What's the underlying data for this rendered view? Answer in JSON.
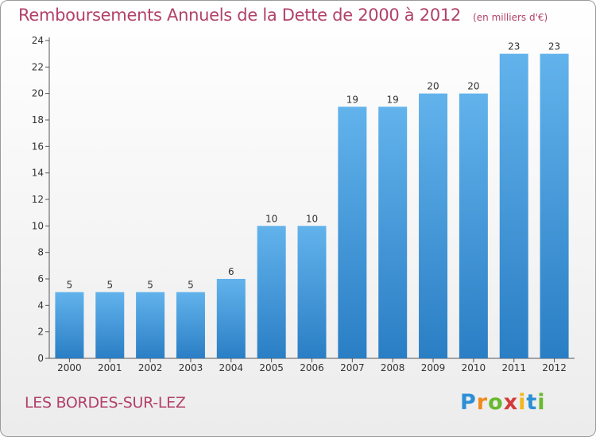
{
  "title": "Remboursements Annuels de la Dette de 2000 à 2012",
  "subtitle": "(en milliers d'€)",
  "commune": "LES BORDES-SUR-LEZ",
  "logo": {
    "letters": [
      "P",
      "r",
      "o",
      "x",
      "i",
      "t",
      "i"
    ],
    "colors": [
      "#2b8fd6",
      "#f08a1c",
      "#69b82e",
      "#d43a3a",
      "#f0b81c",
      "#2b8fd6",
      "#69b82e"
    ]
  },
  "colors": {
    "bar_top": "#62b3ec",
    "bar_bottom": "#2a7ec4",
    "title": "#b2416a"
  },
  "chart_data": {
    "type": "bar",
    "title": "Remboursements Annuels de la Dette de 2000 à 2012",
    "categories": [
      "2000",
      "2001",
      "2002",
      "2003",
      "2004",
      "2005",
      "2006",
      "2007",
      "2008",
      "2009",
      "2010",
      "2011",
      "2012"
    ],
    "values": [
      5,
      5,
      5,
      5,
      6,
      10,
      10,
      19,
      19,
      20,
      20,
      23,
      23
    ],
    "ylim": [
      0,
      24
    ],
    "yticks": [
      0,
      2,
      4,
      6,
      8,
      10,
      12,
      14,
      16,
      18,
      20,
      22,
      24
    ],
    "grid": false,
    "data_labels": true
  }
}
